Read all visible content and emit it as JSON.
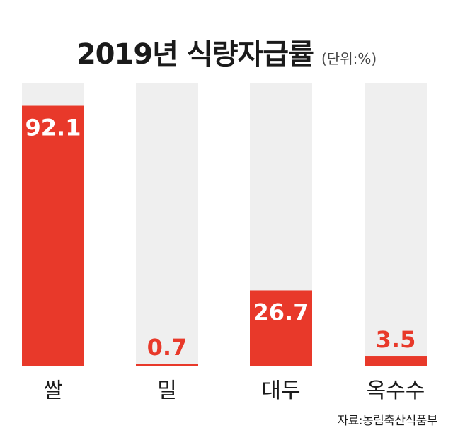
{
  "chart_data": {
    "type": "bar",
    "title": "2019년 식량자급률",
    "unit": "(단위:%)",
    "categories": [
      "쌀",
      "밀",
      "대두",
      "옥수수"
    ],
    "values": [
      92.1,
      0.7,
      26.7,
      3.5
    ],
    "value_labels": [
      "92.1",
      "0.7",
      "26.7",
      "3.5"
    ],
    "ylim": [
      0,
      100
    ],
    "grid": false,
    "legend": "none",
    "source": "자료:농림축산식품부"
  },
  "colors": {
    "bar": "#e8392a",
    "track": "#efefef",
    "label_inside": "#ffffff",
    "label_outside": "#e8392a"
  }
}
